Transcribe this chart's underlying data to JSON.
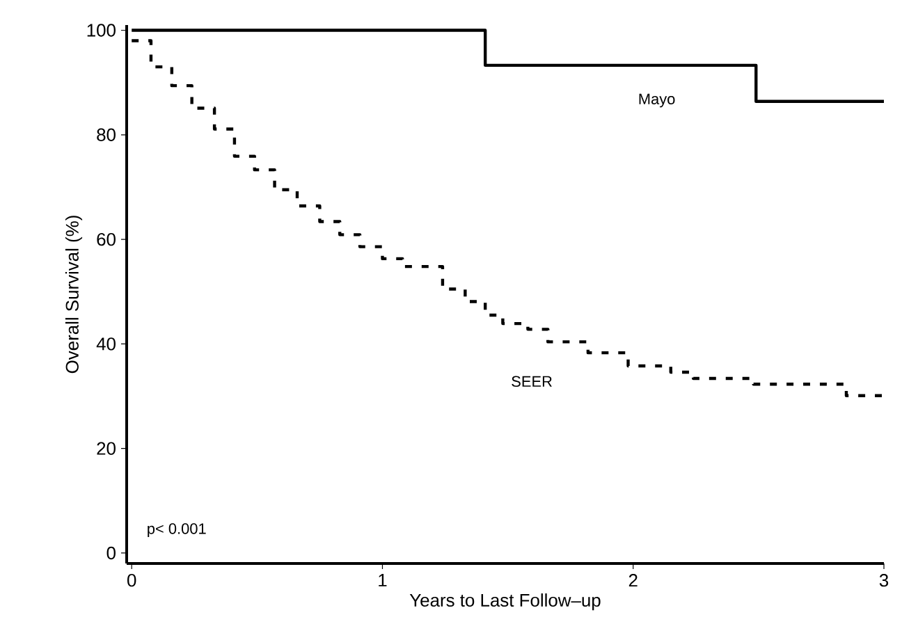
{
  "chart_data": {
    "type": "step",
    "xlabel": "Years to Last Follow–up",
    "ylabel": "Overall Survival (%)",
    "xlim": [
      -0.02,
      3
    ],
    "ylim": [
      -2,
      101
    ],
    "xticks": [
      0,
      1,
      2,
      3
    ],
    "yticks": [
      0,
      20,
      40,
      60,
      80,
      100
    ],
    "grid": false,
    "marker": "none",
    "annotations": [
      "p< 0.001"
    ],
    "series": [
      {
        "name": "Mayo",
        "color": "#000000",
        "line_style": "solid",
        "x": [
          0,
          1.41,
          2.49,
          3
        ],
        "values": [
          100,
          93.3,
          86.4,
          86.4
        ]
      },
      {
        "name": "SEER",
        "color": "#000000",
        "line_style": "dashed",
        "x": [
          0,
          0.077,
          0.16,
          0.24,
          0.33,
          0.41,
          0.49,
          0.57,
          0.66,
          0.75,
          0.83,
          0.91,
          1.0,
          1.08,
          1.24,
          1.33,
          1.41,
          1.48,
          1.58,
          1.66,
          1.82,
          1.98,
          2.15,
          2.24,
          2.48,
          2.85,
          3
        ],
        "values": [
          98,
          93,
          89.4,
          85.1,
          81.1,
          75.9,
          73.3,
          69.5,
          66.4,
          63.4,
          60.9,
          58.6,
          56.3,
          54.8,
          50.5,
          48.1,
          45.5,
          43.9,
          42.8,
          40.4,
          38.3,
          35.8,
          34.6,
          33.4,
          32.3,
          30.1,
          30.1
        ]
      }
    ]
  }
}
